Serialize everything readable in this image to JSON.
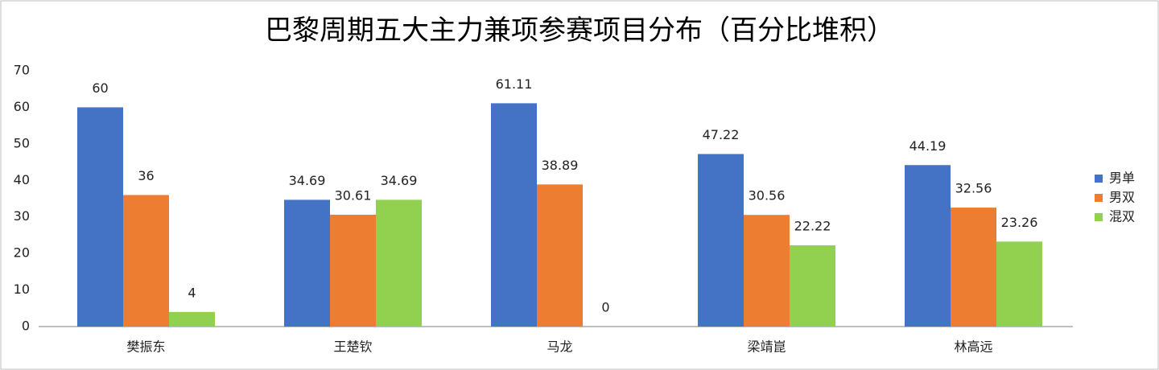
{
  "chart_data": {
    "type": "bar",
    "title": "巴黎周期五大主力兼项参赛项目分布（百分比堆积）",
    "categories": [
      "樊振东",
      "王楚钦",
      "马龙",
      "梁靖崑",
      "林高远"
    ],
    "series": [
      {
        "name": "男单",
        "color": "#4472c4",
        "values": [
          60,
          34.69,
          61.11,
          47.22,
          44.19
        ]
      },
      {
        "name": "男双",
        "color": "#ed7d31",
        "values": [
          36,
          30.61,
          38.89,
          30.56,
          32.56
        ]
      },
      {
        "name": "混双",
        "color": "#92d050",
        "values": [
          4,
          34.69,
          0,
          22.22,
          23.26
        ]
      }
    ],
    "ylim": [
      0,
      70
    ],
    "yticks": [
      0,
      10,
      20,
      30,
      40,
      50,
      60,
      70
    ],
    "grid": false,
    "legend": "right"
  }
}
